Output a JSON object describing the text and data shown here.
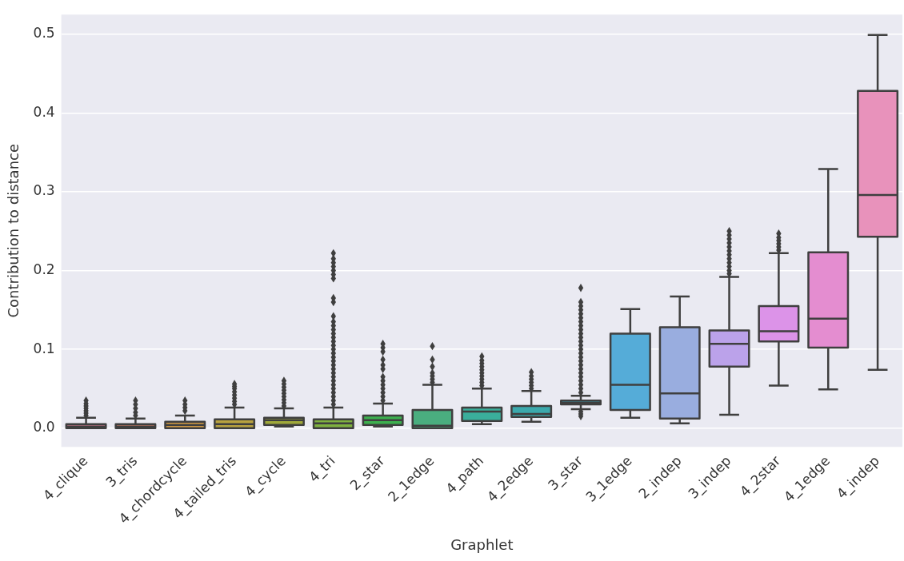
{
  "chart_data": {
    "type": "box",
    "xlabel": "Graphlet",
    "ylabel": "Contribution to distance",
    "categories": [
      "4_clique",
      "3_tris",
      "4_chordcycle",
      "4_tailed_tris",
      "4_cycle",
      "4_tri",
      "2_star",
      "2_1edge",
      "4_path",
      "4_2edge",
      "3_star",
      "3_1edge",
      "2_indep",
      "3_indep",
      "4_2star",
      "4_1edge",
      "4_indep"
    ],
    "colors": [
      "#e8829a",
      "#e8866a",
      "#d19a45",
      "#b9a23f",
      "#a0a93a",
      "#7fb13f",
      "#3db04e",
      "#4aae7f",
      "#3aae9b",
      "#3ba9ac",
      "#3aa5bd",
      "#55acd8",
      "#99addf",
      "#bba2ea",
      "#dc93e8",
      "#e48dd0",
      "#e892bb"
    ],
    "boxes": [
      {
        "low": 0,
        "q1": 0,
        "median": 0.002,
        "q3": 0.005,
        "high": 0.013,
        "outliers": [
          0.016,
          0.019,
          0.022,
          0.025,
          0.028,
          0.031,
          0.035
        ]
      },
      {
        "low": 0,
        "q1": 0,
        "median": 0.002,
        "q3": 0.005,
        "high": 0.012,
        "outliers": [
          0.016,
          0.02,
          0.025,
          0.03,
          0.035
        ]
      },
      {
        "low": 0,
        "q1": 0,
        "median": 0.004,
        "q3": 0.008,
        "high": 0.016,
        "outliers": [
          0.022,
          0.026,
          0.03,
          0.035
        ]
      },
      {
        "low": 0,
        "q1": 0,
        "median": 0.005,
        "q3": 0.011,
        "high": 0.026,
        "outliers": [
          0.03,
          0.034,
          0.038,
          0.042,
          0.046,
          0.05,
          0.053,
          0.056
        ]
      },
      {
        "low": 0.002,
        "q1": 0.004,
        "median": 0.01,
        "q3": 0.013,
        "high": 0.025,
        "outliers": [
          0.028,
          0.032,
          0.036,
          0.04,
          0.044,
          0.048,
          0.052,
          0.056,
          0.06
        ]
      },
      {
        "low": 0,
        "q1": 0,
        "median": 0.006,
        "q3": 0.011,
        "high": 0.026,
        "outliers": [
          0.03,
          0.035,
          0.04,
          0.045,
          0.05,
          0.055,
          0.06,
          0.065,
          0.07,
          0.075,
          0.08,
          0.085,
          0.09,
          0.095,
          0.1,
          0.105,
          0.11,
          0.115,
          0.12,
          0.125,
          0.13,
          0.135,
          0.142,
          0.16,
          0.165,
          0.19,
          0.195,
          0.2,
          0.205,
          0.21,
          0.215,
          0.222
        ]
      },
      {
        "low": 0.002,
        "q1": 0.004,
        "median": 0.01,
        "q3": 0.016,
        "high": 0.031,
        "outliers": [
          0.035,
          0.04,
          0.045,
          0.05,
          0.055,
          0.06,
          0.065,
          0.075,
          0.08,
          0.087,
          0.097,
          0.102,
          0.107
        ]
      },
      {
        "low": 0,
        "q1": 0,
        "median": 0.003,
        "q3": 0.023,
        "high": 0.055,
        "outliers": [
          0.058,
          0.062,
          0.066,
          0.07,
          0.078,
          0.087,
          0.104
        ]
      },
      {
        "low": 0.005,
        "q1": 0.009,
        "median": 0.021,
        "q3": 0.026,
        "high": 0.05,
        "outliers": [
          0.054,
          0.058,
          0.062,
          0.066,
          0.07,
          0.074,
          0.078,
          0.082,
          0.086,
          0.091
        ]
      },
      {
        "low": 0.008,
        "q1": 0.014,
        "median": 0.018,
        "q3": 0.028,
        "high": 0.047,
        "outliers": [
          0.05,
          0.054,
          0.058,
          0.062,
          0.066,
          0.071
        ]
      },
      {
        "low": 0.024,
        "q1": 0.03,
        "median": 0.032,
        "q3": 0.035,
        "high": 0.041,
        "outliers": [
          0.015,
          0.018,
          0.021,
          0.045,
          0.05,
          0.055,
          0.06,
          0.065,
          0.07,
          0.075,
          0.08,
          0.085,
          0.09,
          0.095,
          0.1,
          0.105,
          0.11,
          0.115,
          0.12,
          0.125,
          0.13,
          0.135,
          0.14,
          0.145,
          0.15,
          0.155,
          0.16,
          0.178
        ]
      },
      {
        "low": 0.013,
        "q1": 0.023,
        "median": 0.055,
        "q3": 0.12,
        "high": 0.151
      },
      {
        "low": 0.006,
        "q1": 0.012,
        "median": 0.044,
        "q3": 0.128,
        "high": 0.167
      },
      {
        "low": 0.017,
        "q1": 0.078,
        "median": 0.107,
        "q3": 0.124,
        "high": 0.192,
        "outliers": [
          0.196,
          0.2,
          0.205,
          0.21,
          0.215,
          0.22,
          0.225,
          0.23,
          0.235,
          0.24,
          0.245,
          0.25
        ]
      },
      {
        "low": 0.054,
        "q1": 0.11,
        "median": 0.123,
        "q3": 0.155,
        "high": 0.222,
        "outliers": [
          0.226,
          0.23,
          0.234,
          0.238,
          0.242,
          0.247
        ]
      },
      {
        "low": 0.049,
        "q1": 0.102,
        "median": 0.139,
        "q3": 0.223,
        "high": 0.329
      },
      {
        "low": 0.074,
        "q1": 0.243,
        "median": 0.296,
        "q3": 0.428,
        "high": 0.499
      }
    ],
    "ylim": [
      -0.024,
      0.525
    ],
    "yticks": [
      {
        "value": 0,
        "label": "0.0"
      },
      {
        "value": 0.1,
        "label": "0.1"
      },
      {
        "value": 0.2,
        "label": "0.2"
      },
      {
        "value": 0.3,
        "label": "0.3"
      },
      {
        "value": 0.4,
        "label": "0.4"
      },
      {
        "value": 0.5,
        "label": "0.5"
      }
    ],
    "grid": "y",
    "marker": "diamond",
    "legend": false
  }
}
